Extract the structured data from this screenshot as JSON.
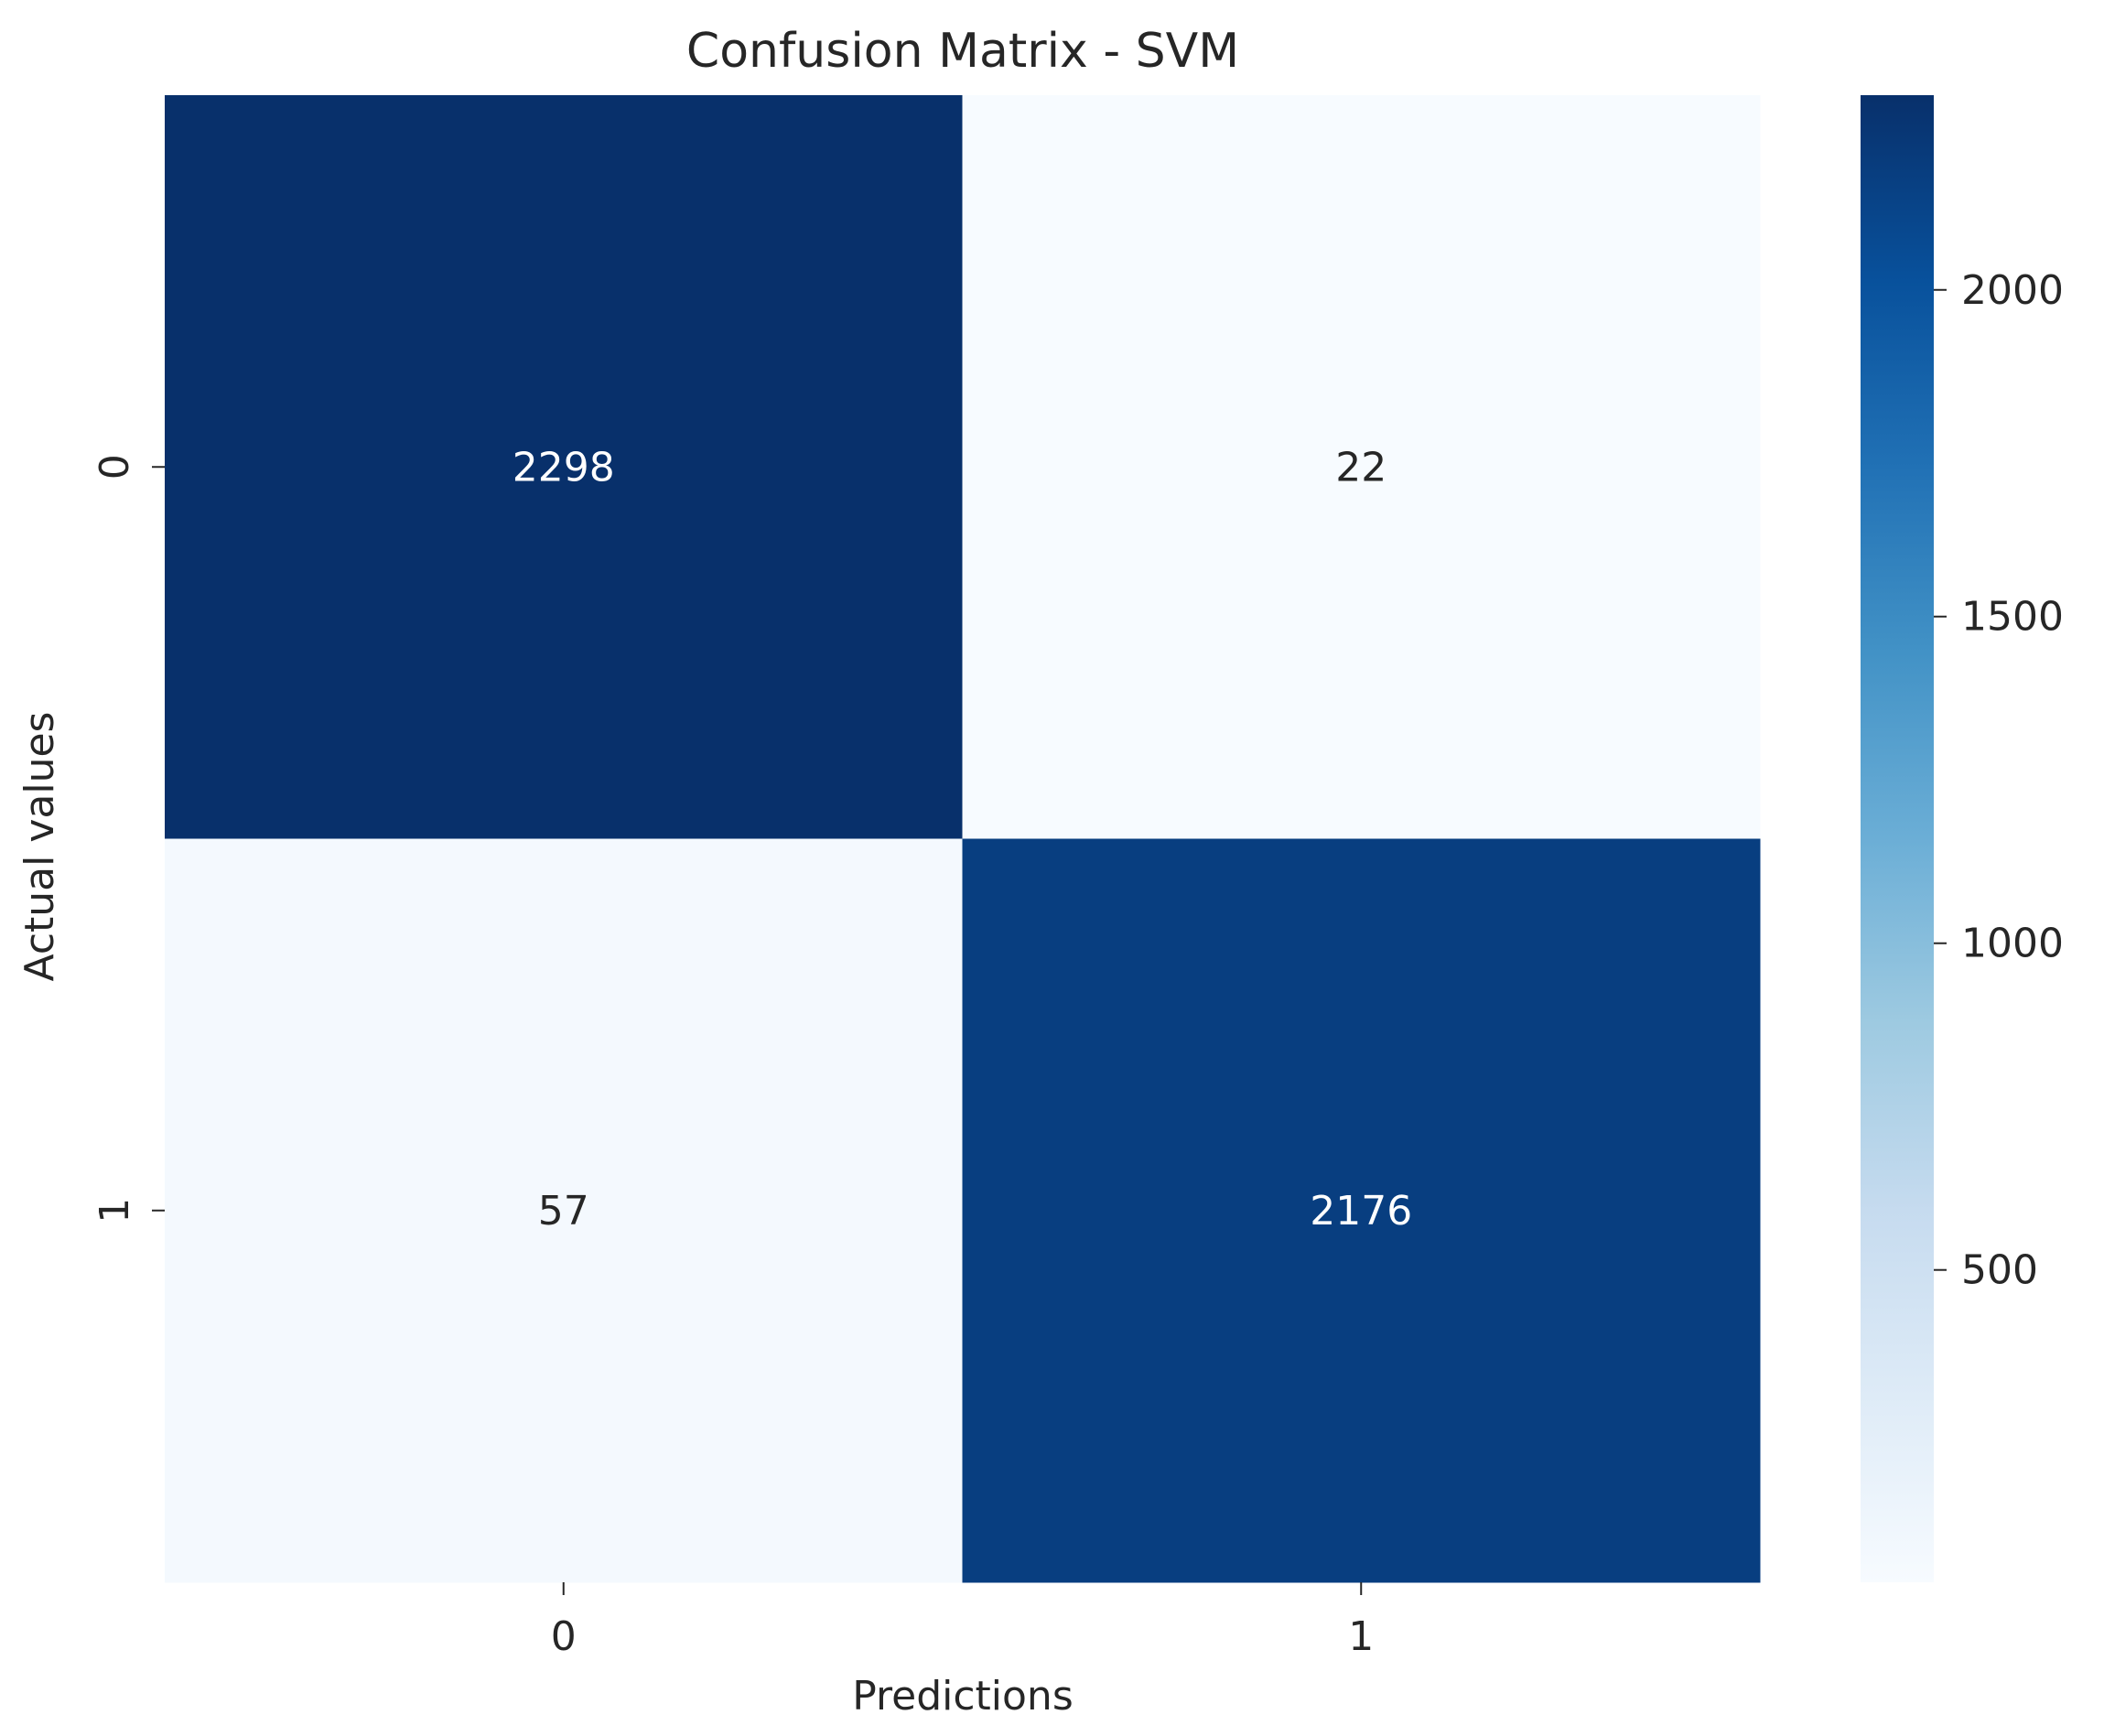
{
  "chart_data": {
    "type": "heatmap",
    "title": "Confusion Matrix - SVM",
    "xlabel": "Predictions",
    "ylabel": "Actual values",
    "x_categories": [
      "0",
      "1"
    ],
    "y_categories": [
      "0",
      "1"
    ],
    "values": [
      [
        2298,
        22
      ],
      [
        57,
        2176
      ]
    ],
    "colormap": "Blues",
    "colorbar": {
      "vmin": 22,
      "vmax": 2298,
      "ticks": [
        500,
        1000,
        1500,
        2000
      ],
      "tick_labels": [
        "500",
        "1000",
        "1500",
        "2000"
      ]
    },
    "grid": false,
    "legend": "none"
  }
}
